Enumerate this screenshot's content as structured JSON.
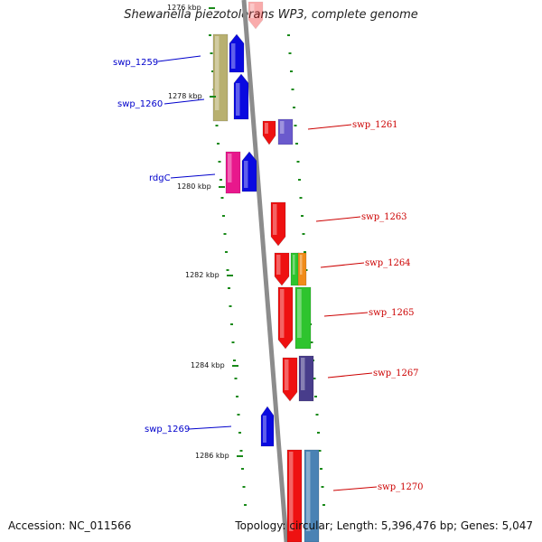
{
  "title": "Shewanella piezotolerans WP3, complete genome",
  "footer": {
    "accession": "Accession: NC_011566",
    "summary": "Topology: circular; Length: 5,396,476 bp; Genes: 5,047"
  },
  "scale_labels": [
    "1276 kbp",
    "1278 kbp",
    "1280 kbp",
    "1282 kbp",
    "1284 kbp",
    "1286 kbp"
  ],
  "gene_labels_left": [
    "swp_1259",
    "swp_1260",
    "rdgC",
    "swp_1269"
  ],
  "gene_labels_right": [
    "swp_1261",
    "swp_1263",
    "swp_1264",
    "swp_1265",
    "swp_1267",
    "swp_1270"
  ],
  "colors": {
    "backbone": "#8c8c8c",
    "left_label": "#0000cc",
    "right_label": "#cc0000",
    "tick": "#1a8a1a",
    "gene_red": "#ee1111",
    "gene_blue": "#0a0ae0",
    "gene_olive": "#b8b070",
    "gene_magenta": "#e8188c",
    "gene_purple": "#6a5acd",
    "gene_green": "#2ec42e",
    "gene_orange": "#f08c1a",
    "gene_steel": "#4a82b4",
    "gene_slate": "#483d8b"
  }
}
